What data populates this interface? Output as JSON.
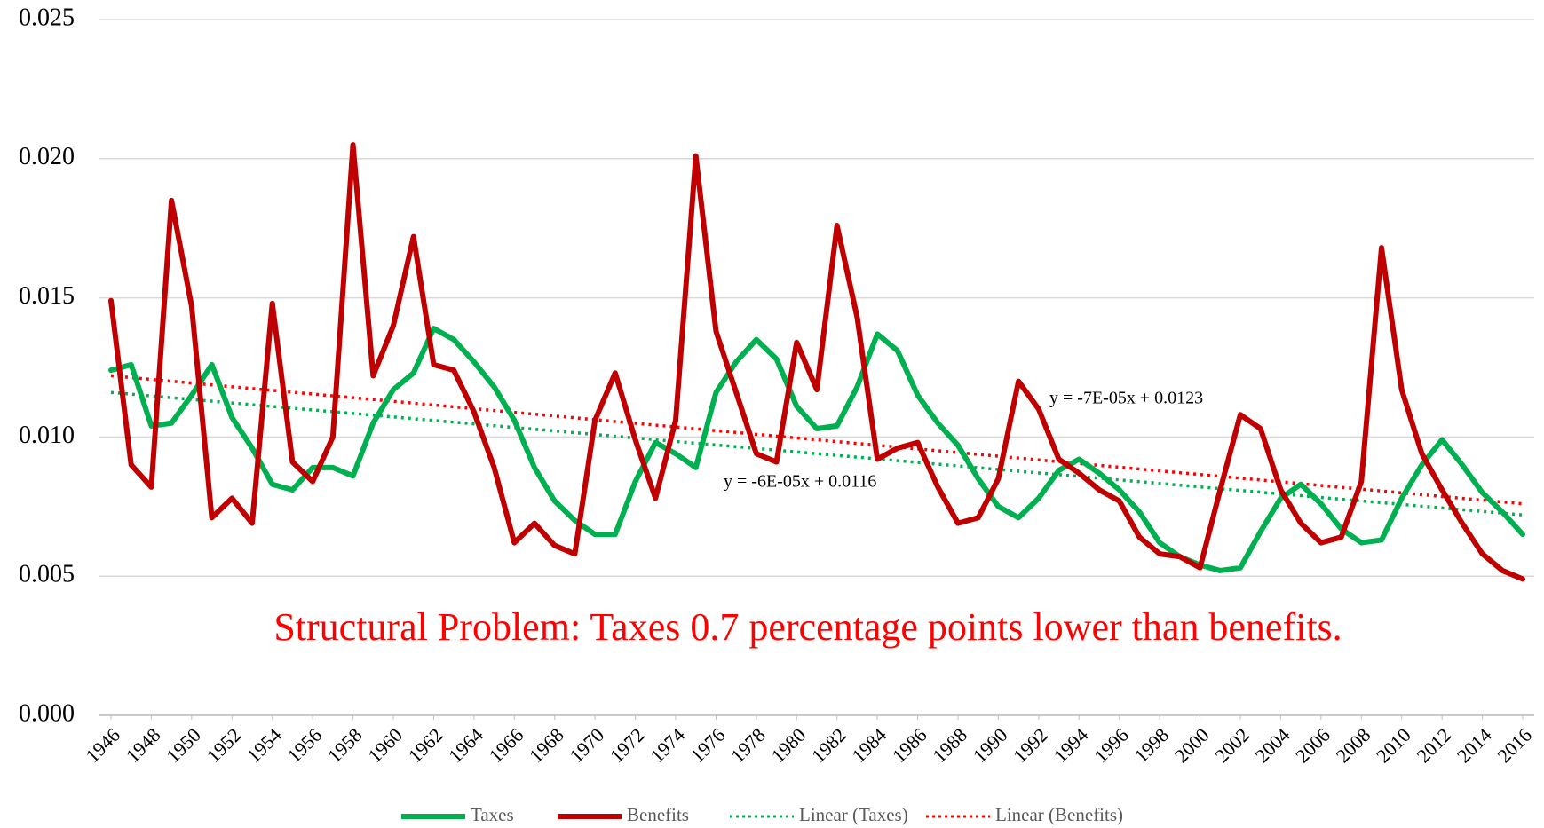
{
  "chart_data": {
    "type": "line",
    "x": [
      1946,
      1947,
      1948,
      1949,
      1950,
      1951,
      1952,
      1953,
      1954,
      1955,
      1956,
      1957,
      1958,
      1959,
      1960,
      1961,
      1962,
      1963,
      1964,
      1965,
      1966,
      1967,
      1968,
      1969,
      1970,
      1971,
      1972,
      1973,
      1974,
      1975,
      1976,
      1977,
      1978,
      1979,
      1980,
      1981,
      1982,
      1983,
      1984,
      1985,
      1986,
      1987,
      1988,
      1989,
      1990,
      1991,
      1992,
      1993,
      1994,
      1995,
      1996,
      1997,
      1998,
      1999,
      2000,
      2001,
      2002,
      2003,
      2004,
      2005,
      2006,
      2007,
      2008,
      2009,
      2010,
      2011,
      2012,
      2013,
      2014,
      2015,
      2016
    ],
    "series": [
      {
        "name": "Taxes",
        "color": "#00b050",
        "style": "solid",
        "values": [
          0.0124,
          0.0126,
          0.0104,
          0.0105,
          0.0115,
          0.0126,
          0.0107,
          0.0096,
          0.0083,
          0.0081,
          0.0089,
          0.0089,
          0.0086,
          0.0105,
          0.0117,
          0.0123,
          0.0139,
          0.0135,
          0.0127,
          0.0118,
          0.0106,
          0.0089,
          0.0077,
          0.007,
          0.0065,
          0.0065,
          0.0084,
          0.0098,
          0.0094,
          0.0089,
          0.0116,
          0.0127,
          0.0135,
          0.0128,
          0.0111,
          0.0103,
          0.0104,
          0.0118,
          0.0137,
          0.0131,
          0.0115,
          0.0105,
          0.0097,
          0.0085,
          0.0075,
          0.0071,
          0.0078,
          0.0088,
          0.0092,
          0.0087,
          0.0081,
          0.0073,
          0.0062,
          0.0057,
          0.0054,
          0.0052,
          0.0053,
          0.0066,
          0.0078,
          0.0083,
          0.0076,
          0.0067,
          0.0062,
          0.0063,
          0.0078,
          0.009,
          0.0099,
          0.009,
          0.008,
          0.0073,
          0.0065
        ]
      },
      {
        "name": "Benefits",
        "color": "#c00000",
        "style": "solid",
        "values": [
          0.0149,
          0.009,
          0.0082,
          0.0185,
          0.0147,
          0.0071,
          0.0078,
          0.0069,
          0.0148,
          0.0091,
          0.0084,
          0.01,
          0.0205,
          0.0122,
          0.014,
          0.0172,
          0.0126,
          0.0124,
          0.0109,
          0.0089,
          0.0062,
          0.0069,
          0.0061,
          0.0058,
          0.0106,
          0.0123,
          0.0099,
          0.0078,
          0.0106,
          0.0201,
          0.0138,
          0.0116,
          0.0094,
          0.0091,
          0.0134,
          0.0117,
          0.0176,
          0.0143,
          0.0092,
          0.0096,
          0.0098,
          0.0082,
          0.0069,
          0.0071,
          0.0085,
          0.012,
          0.011,
          0.0092,
          0.0087,
          0.0081,
          0.0077,
          0.0064,
          0.0058,
          0.0057,
          0.0053,
          0.0081,
          0.0108,
          0.0103,
          0.0081,
          0.0069,
          0.0062,
          0.0064,
          0.0084,
          0.0168,
          0.0117,
          0.0094,
          0.0081,
          0.0069,
          0.0058,
          0.0052,
          0.0049
        ]
      },
      {
        "name": "Linear (Taxes)",
        "color": "#00b050",
        "style": "dotted",
        "x": [
          1946,
          2016
        ],
        "values": [
          0.0116,
          0.0072
        ]
      },
      {
        "name": "Linear (Benefits)",
        "color": "#ff0000",
        "style": "dotted",
        "x": [
          1946,
          2016
        ],
        "values": [
          0.0122,
          0.0076
        ]
      }
    ],
    "annotations": [
      "y = -7E-05x + 0.0123",
      "y = -6E-05x + 0.0116",
      "Structural Problem: Taxes 0.7 percentage points lower than benefits."
    ],
    "xlim": [
      1946,
      2016
    ],
    "xticks": [
      1946,
      1948,
      1950,
      1952,
      1954,
      1956,
      1958,
      1960,
      1962,
      1964,
      1966,
      1968,
      1970,
      1972,
      1974,
      1976,
      1978,
      1980,
      1982,
      1984,
      1986,
      1988,
      1990,
      1992,
      1994,
      1996,
      1998,
      2000,
      2002,
      2004,
      2006,
      2008,
      2010,
      2012,
      2014,
      2016
    ],
    "ylim": [
      0,
      0.025
    ],
    "yticks": [
      {
        "value": 0,
        "label": "0.000"
      },
      0.005,
      {
        "value": 0.01,
        "label": "0.010"
      },
      0.015,
      {
        "value": 0.02,
        "label": "0.020"
      },
      0.025
    ],
    "grid": true,
    "legend": "bottom"
  }
}
